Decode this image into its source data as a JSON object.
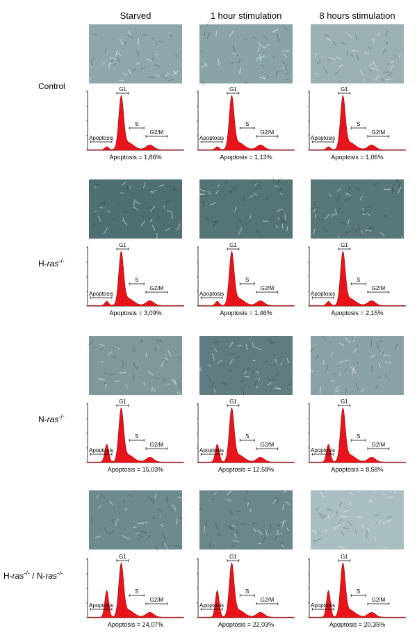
{
  "columns": [
    "Starved",
    "1 hour stimulation",
    "8 hours stimulation"
  ],
  "rows": [
    {
      "label": [
        {
          "text": "Control"
        }
      ],
      "cells": [
        {
          "phases": [
            "G1",
            "S",
            "G2/M",
            "Apoptosis"
          ],
          "apoptosis": "Apoptosis = 1,86%"
        },
        {
          "phases": [
            "G1",
            "S",
            "G2/M",
            "Apoptosis"
          ],
          "apoptosis": "Apoptosis = 1,13%"
        },
        {
          "phases": [
            "G1",
            "S",
            "G2/M",
            "Apoptosis"
          ],
          "apoptosis": "Apoptosis = 1,06%"
        }
      ]
    },
    {
      "label": [
        {
          "text": "H-"
        },
        {
          "text": "ras",
          "style": "italic"
        },
        {
          "text": "-/-",
          "style": "sup"
        }
      ],
      "cells": [
        {
          "phases": [
            "G1",
            "S",
            "G2/M",
            "Apoptosis"
          ],
          "apoptosis": "Apoptosis = 3,09%"
        },
        {
          "phases": [
            "G1",
            "S",
            "G2/M",
            "Apoptosis"
          ],
          "apoptosis": "Apoptosis = 1,46%"
        },
        {
          "phases": [
            "G1",
            "S",
            "G2/M",
            "Apoptosis"
          ],
          "apoptosis": "Apoptosis = 2,15%"
        }
      ]
    },
    {
      "label": [
        {
          "text": "N-"
        },
        {
          "text": "ras",
          "style": "italic"
        },
        {
          "text": "-/-",
          "style": "sup"
        }
      ],
      "cells": [
        {
          "phases": [
            "G1",
            "S",
            "G2/M",
            "Apoptosis"
          ],
          "apoptosis": "Apoptosis = 15,03%"
        },
        {
          "phases": [
            "G1",
            "S",
            "G2/M",
            "Apoptosis"
          ],
          "apoptosis": "Apoptosis = 12,58%"
        },
        {
          "phases": [
            "G1",
            "S",
            "G2/M",
            "Apoptosis"
          ],
          "apoptosis": "Apoptosis = 8,58%"
        }
      ]
    },
    {
      "label": [
        {
          "text": "H-"
        },
        {
          "text": "ras",
          "style": "italic"
        },
        {
          "text": "-/-",
          "style": "sup"
        },
        {
          "text": " / N-"
        },
        {
          "text": "ras",
          "style": "italic"
        },
        {
          "text": "-/-",
          "style": "sup"
        }
      ],
      "cells": [
        {
          "phases": [
            "G1",
            "S",
            "G2/M",
            "Apoptosis"
          ],
          "apoptosis": "Apoptosis = 24,07%"
        },
        {
          "phases": [
            "G1",
            "S",
            "G2/M",
            "Apoptosis"
          ],
          "apoptosis": "Apoptosis = 22,03%"
        },
        {
          "phases": [
            "G1",
            "S",
            "G2/M",
            "Apoptosis"
          ],
          "apoptosis": "Apoptosis = 20,35%"
        }
      ]
    }
  ]
}
